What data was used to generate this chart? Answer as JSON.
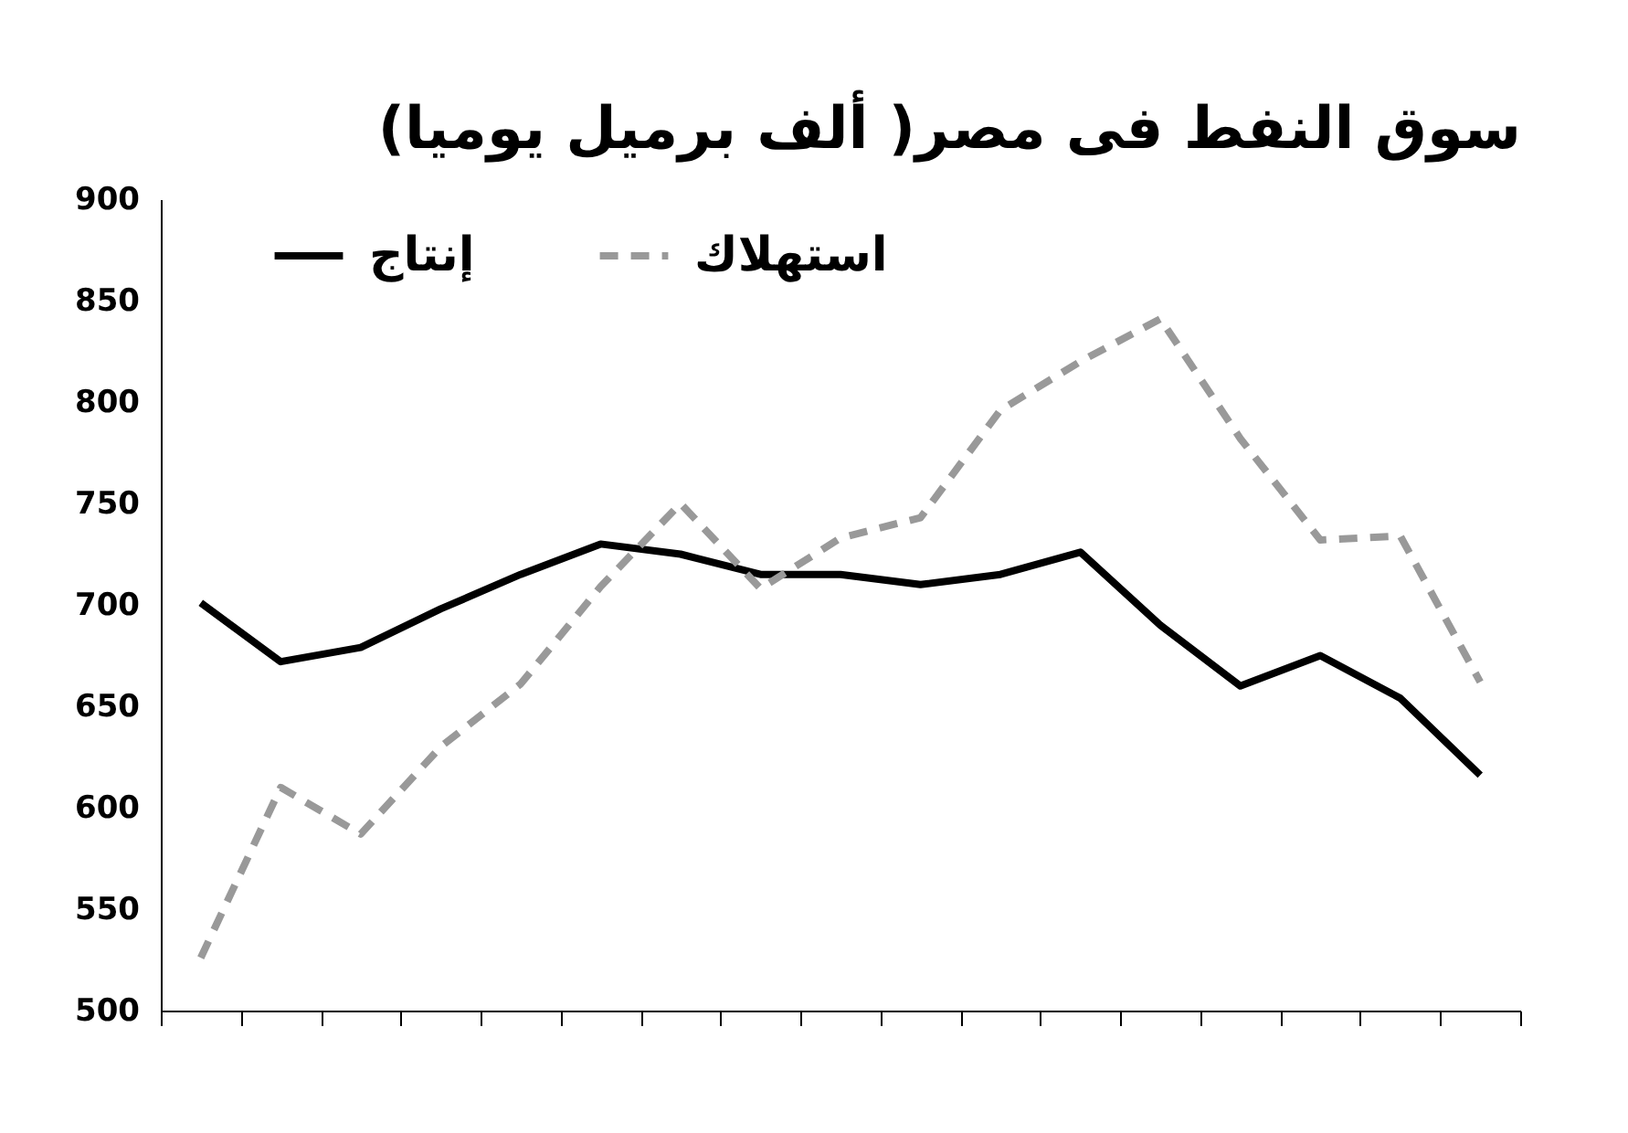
{
  "chart_data": {
    "type": "line",
    "title": "سوق النفط فى مصر( ألف برميل يوميا)",
    "categories": [
      null,
      null,
      null,
      null,
      null,
      null,
      null,
      null,
      null,
      null,
      null,
      null,
      null,
      null,
      null,
      null,
      null
    ],
    "series": [
      {
        "name": "إنتاج",
        "color": "#000000",
        "line_style": "solid",
        "values": [
          701,
          672,
          679,
          698,
          715,
          730,
          725,
          715,
          715,
          710,
          715,
          726,
          690,
          660,
          675,
          654,
          616
        ]
      },
      {
        "name": "استهلاك",
        "color": "#999999",
        "line_style": "dashed",
        "values": [
          526,
          610,
          587,
          630,
          661,
          709,
          750,
          708,
          733,
          743,
          796,
          820,
          841,
          782,
          732,
          734,
          662
        ]
      }
    ],
    "ylim": [
      500,
      900
    ],
    "yticks": [
      500,
      550,
      600,
      650,
      700,
      750,
      800,
      850,
      900
    ],
    "grid": false,
    "legend": "top",
    "marker": "none"
  }
}
